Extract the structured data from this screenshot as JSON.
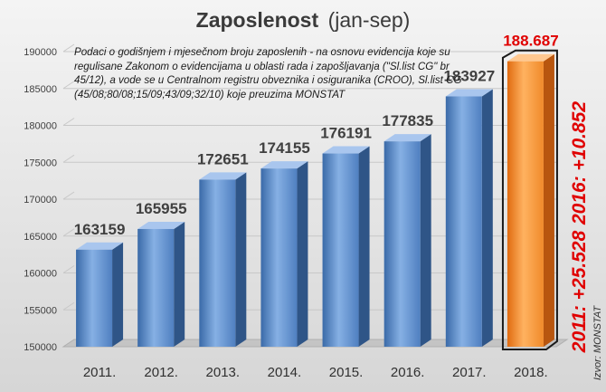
{
  "chart_data": {
    "type": "bar",
    "title": "Zaposlenost",
    "subtitle": "(jan-sep)",
    "categories": [
      "2011.",
      "2012.",
      "2013.",
      "2014.",
      "2015.",
      "2016.",
      "2017.",
      "2018."
    ],
    "values": [
      163159,
      165955,
      172651,
      174155,
      176191,
      177835,
      183927,
      188687
    ],
    "value_labels": [
      "163159",
      "165955",
      "172651",
      "174155",
      "176191",
      "177835",
      "183927",
      "188.687"
    ],
    "ylim": [
      150000,
      190000
    ],
    "yticks": [
      "150000",
      "155000",
      "160000",
      "165000",
      "170000",
      "175000",
      "180000",
      "185000",
      "190000"
    ],
    "grid": true,
    "highlight_index": 7,
    "annotations": {
      "note": "Podaci o godišnjem i mjesečnom broju zaposlenih - na osnovu evidencija koje su regulisane Zakonom o evidencijama u oblasti rada i zapošljavanja (\"Sl.list CG\" br 45/12), a vode se u Centralnom registru obveznika i osiguranika (CROO), Sl.list CG (45/08;80/08;15/09;43/09;32/10) koje preuzima MONSTAT",
      "side_top": "2016: +10.852",
      "side_bottom": "2011: +25.528",
      "source": "Izvor: MONSTAT"
    }
  },
  "colors": {
    "bar": "#4f81bd",
    "bar_highlight": "#f79646",
    "accent_text": "#e00000",
    "grid": "#c8c8c8"
  }
}
